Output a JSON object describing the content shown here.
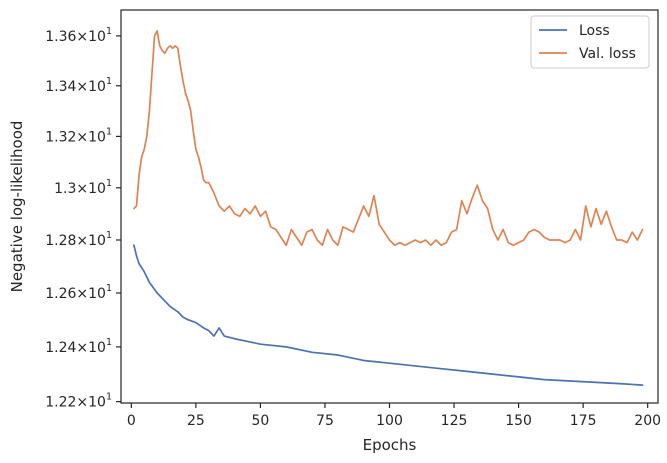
{
  "chart_data": {
    "type": "line",
    "xlabel": "Epochs",
    "ylabel": "Negative log-likelihood",
    "xlim": [
      -4,
      204
    ],
    "ylim": [
      12.195,
      13.705
    ],
    "y_scale": "log",
    "grid": false,
    "legend_placement": "top-right",
    "x_ticks": [
      0,
      25,
      50,
      75,
      100,
      125,
      150,
      175,
      200
    ],
    "x_tick_labels": [
      "0",
      "25",
      "50",
      "75",
      "100",
      "125",
      "150",
      "175",
      "200"
    ],
    "y_ticks": [
      {
        "value": 12.2,
        "mantissa": "1.22"
      },
      {
        "value": 12.4,
        "mantissa": "1.24"
      },
      {
        "value": 12.6,
        "mantissa": "1.26"
      },
      {
        "value": 12.8,
        "mantissa": "1.28"
      },
      {
        "value": 13.0,
        "mantissa": "1.3"
      },
      {
        "value": 13.2,
        "mantissa": "1.32"
      },
      {
        "value": 13.4,
        "mantissa": "1.34"
      },
      {
        "value": 13.6,
        "mantissa": "1.36"
      }
    ],
    "y_tick_base": "10",
    "y_tick_exponent": "1",
    "y_tick_times": "×",
    "series": [
      {
        "name": "Loss",
        "color": "#4c72b0",
        "anchors": [
          [
            1,
            12.78
          ],
          [
            2,
            12.74
          ],
          [
            3,
            12.71
          ],
          [
            5,
            12.68
          ],
          [
            7,
            12.64
          ],
          [
            10,
            12.6
          ],
          [
            13,
            12.57
          ],
          [
            15,
            12.55
          ],
          [
            18,
            12.53
          ],
          [
            20,
            12.51
          ],
          [
            22,
            12.5
          ],
          [
            25,
            12.49
          ],
          [
            28,
            12.47
          ],
          [
            30,
            12.46
          ],
          [
            32,
            12.44
          ],
          [
            34,
            12.47
          ],
          [
            36,
            12.44
          ],
          [
            40,
            12.43
          ],
          [
            45,
            12.42
          ],
          [
            50,
            12.41
          ],
          [
            60,
            12.4
          ],
          [
            70,
            12.38
          ],
          [
            80,
            12.37
          ],
          [
            90,
            12.35
          ],
          [
            100,
            12.34
          ],
          [
            110,
            12.33
          ],
          [
            120,
            12.32
          ],
          [
            130,
            12.31
          ],
          [
            140,
            12.3
          ],
          [
            150,
            12.29
          ],
          [
            160,
            12.28
          ],
          [
            170,
            12.275
          ],
          [
            180,
            12.27
          ],
          [
            190,
            12.265
          ],
          [
            198,
            12.26
          ]
        ]
      },
      {
        "name": "Val. loss",
        "color": "#dd8452",
        "anchors": [
          [
            1,
            12.92
          ],
          [
            2,
            12.93
          ],
          [
            3,
            13.05
          ],
          [
            4,
            13.12
          ],
          [
            5,
            13.15
          ],
          [
            6,
            13.2
          ],
          [
            7,
            13.3
          ],
          [
            8,
            13.45
          ],
          [
            9,
            13.6
          ],
          [
            10,
            13.62
          ],
          [
            11,
            13.56
          ],
          [
            12,
            13.54
          ],
          [
            13,
            13.53
          ],
          [
            14,
            13.55
          ],
          [
            15,
            13.56
          ],
          [
            16,
            13.55
          ],
          [
            17,
            13.56
          ],
          [
            18,
            13.55
          ],
          [
            19,
            13.48
          ],
          [
            20,
            13.42
          ],
          [
            21,
            13.37
          ],
          [
            22,
            13.34
          ],
          [
            23,
            13.3
          ],
          [
            24,
            13.22
          ],
          [
            25,
            13.15
          ],
          [
            26,
            13.12
          ],
          [
            27,
            13.08
          ],
          [
            28,
            13.03
          ],
          [
            29,
            13.02
          ],
          [
            30,
            13.02
          ],
          [
            32,
            12.98
          ],
          [
            34,
            12.93
          ],
          [
            36,
            12.91
          ],
          [
            38,
            12.93
          ],
          [
            40,
            12.9
          ],
          [
            42,
            12.89
          ],
          [
            44,
            12.92
          ],
          [
            46,
            12.9
          ],
          [
            48,
            12.93
          ],
          [
            50,
            12.89
          ],
          [
            52,
            12.91
          ],
          [
            54,
            12.85
          ],
          [
            56,
            12.84
          ],
          [
            58,
            12.81
          ],
          [
            60,
            12.78
          ],
          [
            62,
            12.84
          ],
          [
            64,
            12.81
          ],
          [
            66,
            12.78
          ],
          [
            68,
            12.83
          ],
          [
            70,
            12.84
          ],
          [
            72,
            12.8
          ],
          [
            74,
            12.78
          ],
          [
            76,
            12.84
          ],
          [
            78,
            12.8
          ],
          [
            80,
            12.78
          ],
          [
            82,
            12.85
          ],
          [
            84,
            12.84
          ],
          [
            86,
            12.83
          ],
          [
            88,
            12.88
          ],
          [
            90,
            12.93
          ],
          [
            92,
            12.89
          ],
          [
            94,
            12.97
          ],
          [
            96,
            12.86
          ],
          [
            98,
            12.83
          ],
          [
            100,
            12.8
          ],
          [
            102,
            12.78
          ],
          [
            104,
            12.79
          ],
          [
            106,
            12.78
          ],
          [
            108,
            12.79
          ],
          [
            110,
            12.8
          ],
          [
            112,
            12.79
          ],
          [
            114,
            12.8
          ],
          [
            116,
            12.78
          ],
          [
            118,
            12.8
          ],
          [
            120,
            12.78
          ],
          [
            122,
            12.79
          ],
          [
            124,
            12.83
          ],
          [
            126,
            12.84
          ],
          [
            128,
            12.95
          ],
          [
            130,
            12.9
          ],
          [
            132,
            12.96
          ],
          [
            134,
            13.01
          ],
          [
            136,
            12.95
          ],
          [
            138,
            12.92
          ],
          [
            140,
            12.84
          ],
          [
            142,
            12.8
          ],
          [
            144,
            12.84
          ],
          [
            146,
            12.79
          ],
          [
            148,
            12.78
          ],
          [
            150,
            12.79
          ],
          [
            152,
            12.8
          ],
          [
            154,
            12.83
          ],
          [
            156,
            12.84
          ],
          [
            158,
            12.83
          ],
          [
            160,
            12.81
          ],
          [
            162,
            12.8
          ],
          [
            164,
            12.8
          ],
          [
            166,
            12.8
          ],
          [
            168,
            12.79
          ],
          [
            170,
            12.8
          ],
          [
            172,
            12.84
          ],
          [
            174,
            12.8
          ],
          [
            176,
            12.93
          ],
          [
            178,
            12.85
          ],
          [
            180,
            12.92
          ],
          [
            182,
            12.86
          ],
          [
            184,
            12.91
          ],
          [
            186,
            12.85
          ],
          [
            188,
            12.8
          ],
          [
            190,
            12.8
          ],
          [
            192,
            12.79
          ],
          [
            194,
            12.83
          ],
          [
            196,
            12.8
          ],
          [
            198,
            12.84
          ]
        ]
      }
    ]
  }
}
